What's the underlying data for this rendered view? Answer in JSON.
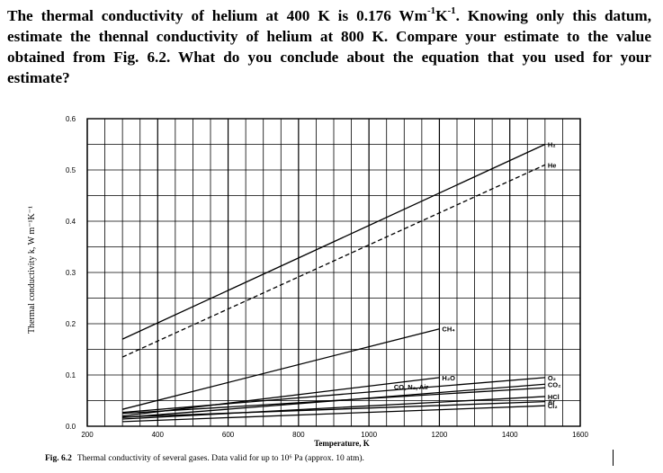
{
  "question": {
    "part1": "The thermal conductivity of helium at 400 K is 0.176 Wm",
    "sup1": "-1",
    "part2": "K",
    "sup2": "-1",
    "part3": ". Knowing only this datum, estimate the thennal conductivity of helium at 800 K. Compare your estimate to the value obtained from Fig. 6.2. What do you conclude about the equation that you used for your estimate?"
  },
  "figure": {
    "caption_prefix": "Fig. 6.2",
    "caption_text": "Thermal conductivity of several gases.  Data valid for up to 10⁶ Pa (approx. 10 atm)."
  },
  "chart_data": {
    "type": "line",
    "title": "",
    "xlabel": "Temperature, K",
    "ylabel": "Thermal conductivity k, W m⁻¹K⁻¹",
    "xlim": [
      200,
      1600
    ],
    "ylim": [
      0.0,
      0.6
    ],
    "x_ticks": [
      "200",
      "400",
      "600",
      "800",
      "1000",
      "1200",
      "1400",
      "1600"
    ],
    "y_ticks": [
      "0.0",
      "0.1",
      "0.2",
      "0.3",
      "0.4",
      "0.5",
      "0.6"
    ],
    "grid": true,
    "series": [
      {
        "name": "H₂",
        "dash": false,
        "x": [
          300,
          1500
        ],
        "y": [
          0.17,
          0.55
        ],
        "label_at": "end"
      },
      {
        "name": "He",
        "dash": true,
        "x": [
          300,
          1500
        ],
        "y": [
          0.135,
          0.51
        ],
        "label_at": "end"
      },
      {
        "name": "CH₄",
        "dash": false,
        "x": [
          300,
          1200
        ],
        "y": [
          0.033,
          0.19
        ],
        "label_at": "end"
      },
      {
        "name": "H₂O",
        "dash": false,
        "x": [
          300,
          1200
        ],
        "y": [
          0.02,
          0.095
        ],
        "label_at": "end"
      },
      {
        "name": "O₂",
        "dash": false,
        "x": [
          300,
          1500
        ],
        "y": [
          0.027,
          0.095
        ],
        "label_at": "end"
      },
      {
        "name": "CO₂",
        "dash": false,
        "x": [
          300,
          1500
        ],
        "y": [
          0.017,
          0.082
        ],
        "label_at": "end"
      },
      {
        "name": "CO, N₂, Air",
        "dash": false,
        "x": [
          300,
          1500
        ],
        "y": [
          0.025,
          0.075
        ],
        "label_at": "mid"
      },
      {
        "name": "HCl",
        "dash": false,
        "x": [
          300,
          1500
        ],
        "y": [
          0.014,
          0.058
        ],
        "label_at": "end"
      },
      {
        "name": "Ar",
        "dash": false,
        "x": [
          300,
          1500
        ],
        "y": [
          0.018,
          0.048
        ],
        "label_at": "end"
      },
      {
        "name": "Cl₂",
        "dash": false,
        "x": [
          300,
          1500
        ],
        "y": [
          0.009,
          0.04
        ],
        "label_at": "end"
      }
    ]
  }
}
